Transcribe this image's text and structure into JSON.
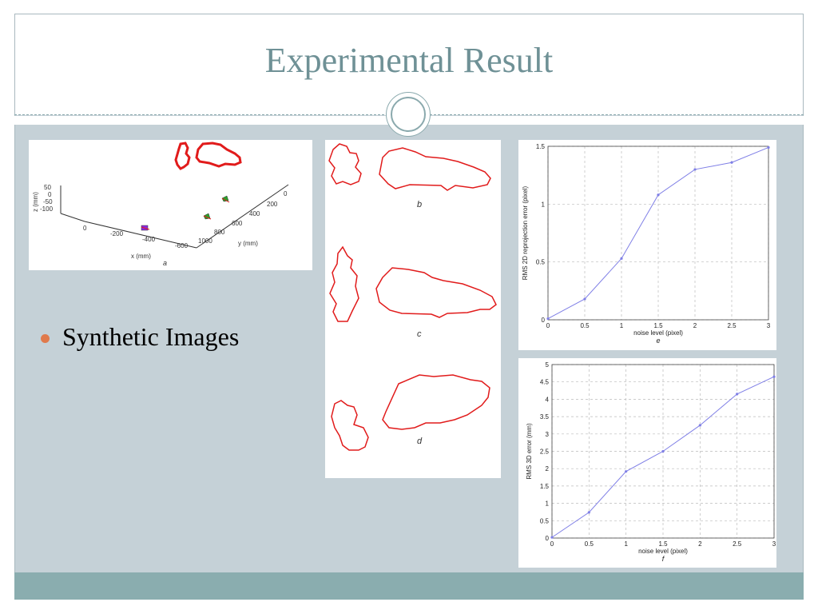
{
  "slide": {
    "title": "Experimental Result",
    "bullet": "Synthetic Images"
  },
  "colors": {
    "accent": "#8aadaf",
    "title": "#6f9196",
    "bullet": "#e07a4c",
    "contour": "#e11b1b",
    "series": "#7f7fe6"
  },
  "figure_a": {
    "panel_label": "a",
    "z_label": "z (mm)",
    "x_label": "x (mm)",
    "y_label": "y (mm)",
    "z_ticks": [
      "50",
      "0",
      "-50",
      "-100"
    ],
    "x_ticks": [
      "0",
      "-200",
      "-400",
      "-600"
    ],
    "y_ticks": [
      "0",
      "200",
      "400",
      "600",
      "800",
      "1000"
    ]
  },
  "contour_labels": {
    "b": "b",
    "c": "c",
    "d": "d"
  },
  "chart_data": [
    {
      "type": "line",
      "panel_label": "e",
      "xlabel": "noise level (pixel)",
      "ylabel": "RMS 2D reprojection error (pixel)",
      "x": [
        0,
        0.5,
        1,
        1.5,
        2,
        2.5,
        3
      ],
      "y": [
        0.01,
        0.18,
        0.53,
        1.08,
        1.3,
        1.36,
        1.49
      ],
      "xlim": [
        0,
        3
      ],
      "ylim": [
        0,
        1.5
      ],
      "xticks": [
        "0",
        "0.5",
        "1",
        "1.5",
        "2",
        "2.5",
        "3"
      ],
      "yticks": [
        "0",
        "0.5",
        "1",
        "1.5"
      ],
      "grid": true
    },
    {
      "type": "line",
      "panel_label": "f",
      "xlabel": "noise level (pixel)",
      "ylabel": "RMS 3D error (mm)",
      "x": [
        0,
        0.5,
        1,
        1.5,
        2,
        2.5,
        3
      ],
      "y": [
        0.02,
        0.74,
        1.92,
        2.5,
        3.25,
        4.15,
        4.65
      ],
      "xlim": [
        0,
        3
      ],
      "ylim": [
        0,
        5
      ],
      "xticks": [
        "0",
        "0.5",
        "1",
        "1.5",
        "2",
        "2.5",
        "3"
      ],
      "yticks": [
        "0",
        "0.5",
        "1",
        "1.5",
        "2",
        "2.5",
        "3",
        "3.5",
        "4",
        "4.5",
        "5"
      ],
      "grid": true
    }
  ]
}
